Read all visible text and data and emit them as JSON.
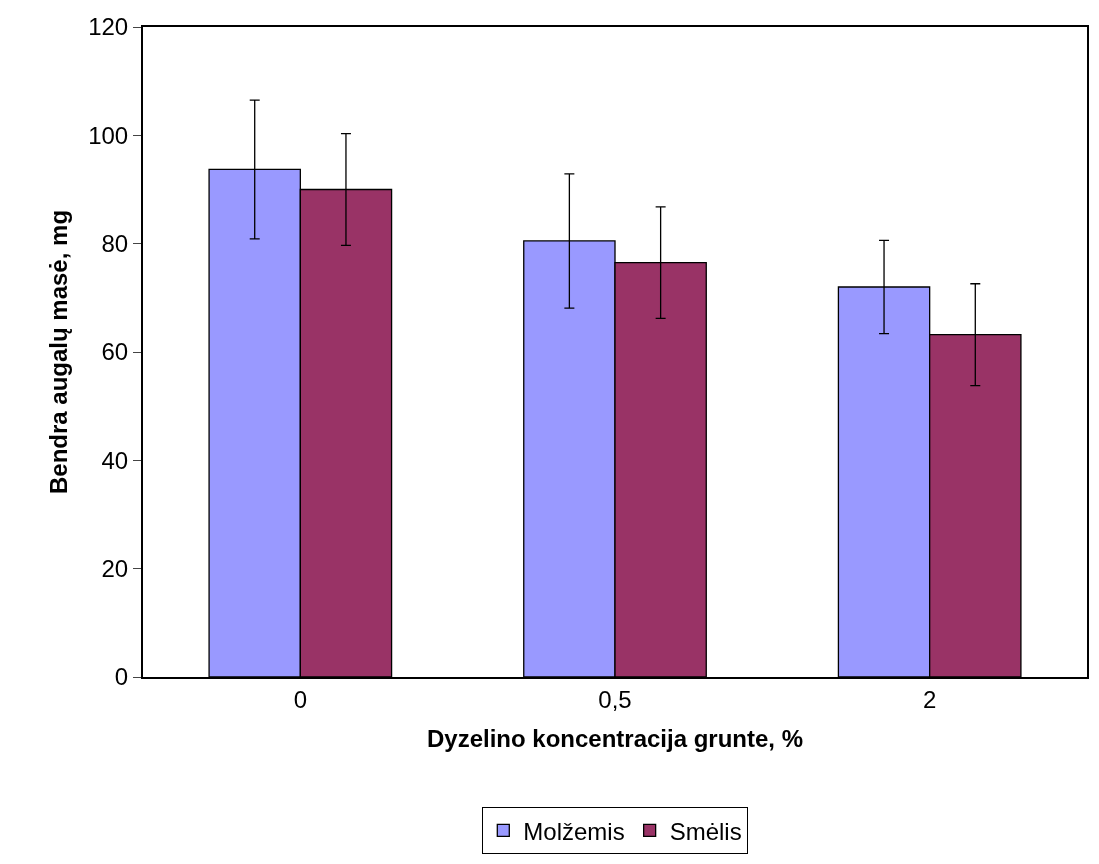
{
  "chart_data": {
    "type": "bar",
    "xlabel": "Dyzelino koncentracija grunte, %",
    "ylabel": "Bendra augalų masė, mg",
    "categories": [
      "0",
      "0,5",
      "2"
    ],
    "series": [
      {
        "name": "Molžemis",
        "color": "#9999ff",
        "values": [
          93.7,
          80.5,
          72
        ],
        "errors": [
          12.8,
          12.4,
          8.6
        ]
      },
      {
        "name": "Smėlis",
        "color": "#993366",
        "values": [
          90,
          76.5,
          63.2
        ],
        "errors": [
          10.3,
          10.3,
          9.4
        ]
      }
    ],
    "ylim": [
      0,
      120
    ],
    "yticks": [
      0,
      20,
      40,
      60,
      80,
      100,
      120
    ],
    "grid": false,
    "legend": "bottom"
  }
}
